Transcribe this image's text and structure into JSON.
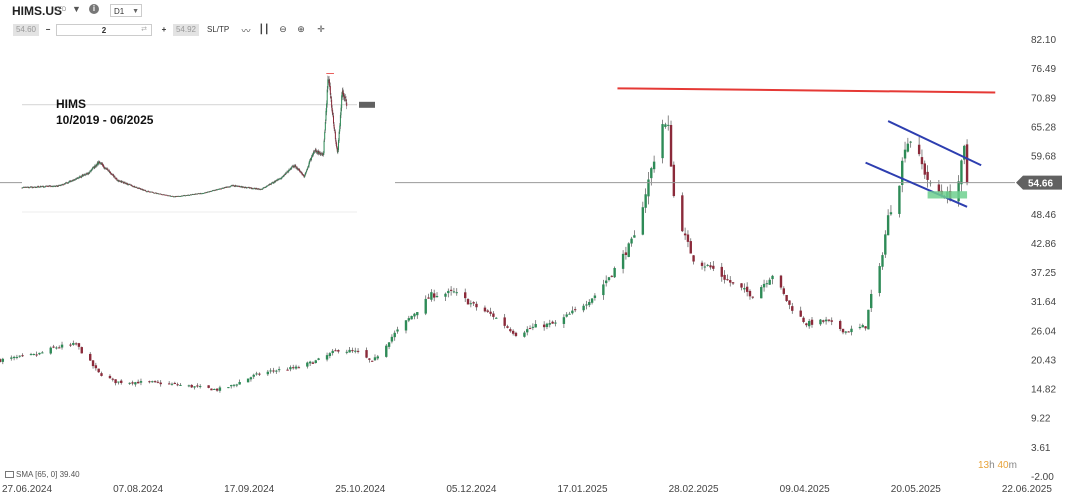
{
  "toolbar": {
    "symbol": "HIMS.US",
    "instrument_type": "CFD",
    "timeframe": "D1",
    "sell_price": "54.60",
    "quantity": "2",
    "buy_price": "54.92",
    "sltp_label": "SL/TP",
    "icons": [
      "line-chart-icon",
      "candles-icon",
      "zoom-out-icon",
      "zoom-in-icon",
      "crosshair-icon"
    ]
  },
  "indicator": {
    "label": "SMA [65, 0] 39.40"
  },
  "countdown": {
    "hours": "13",
    "h": "h",
    "minutes": "40",
    "m": "m"
  },
  "inset": {
    "title_line1": "HIMS",
    "title_line2": "10/2019 - 06/2025"
  },
  "colors": {
    "bull": "#2e8b57",
    "bear": "#8b2a3a",
    "resistance": "#e53935",
    "channel": "#2d3eb0",
    "current_price_line": "#999999",
    "price_label_bg": "#616161",
    "support_box": "#6fd08f",
    "countdown": "#e8a33a"
  },
  "chart_data": {
    "type": "candlestick",
    "current_price": 54.66,
    "current_price_label": "54.66",
    "y_ticks": [
      "82.10",
      "76.49",
      "70.89",
      "65.28",
      "59.68",
      "54.07",
      "48.46",
      "42.86",
      "37.25",
      "31.64",
      "26.04",
      "20.43",
      "14.82",
      "9.22",
      "3.61",
      "-2.00"
    ],
    "ylim": [
      -2.0,
      82.1
    ],
    "x_tick_labels": [
      "27.06.2024",
      "07.08.2024",
      "17.09.2024",
      "25.10.2024",
      "05.12.2024",
      "17.01.2025",
      "28.02.2025",
      "09.04.2025",
      "20.05.2025",
      "22.06.2025"
    ],
    "xlim": [
      "2024-06-27",
      "2025-06-22"
    ],
    "close_path": [
      [
        "2024-06-27",
        20.5
      ],
      [
        "2024-07-10",
        21.5
      ],
      [
        "2024-07-17",
        23.0
      ],
      [
        "2024-07-24",
        23.5
      ],
      [
        "2024-08-01",
        18.0
      ],
      [
        "2024-08-07",
        16.3
      ],
      [
        "2024-08-20",
        16.2
      ],
      [
        "2024-08-28",
        15.8
      ],
      [
        "2024-09-05",
        15.3
      ],
      [
        "2024-09-12",
        14.8
      ],
      [
        "2024-09-17",
        15.5
      ],
      [
        "2024-09-25",
        17.5
      ],
      [
        "2024-10-02",
        18.5
      ],
      [
        "2024-10-10",
        19.0
      ],
      [
        "2024-10-18",
        20.5
      ],
      [
        "2024-10-25",
        22.5
      ],
      [
        "2024-11-01",
        22.0
      ],
      [
        "2024-11-06",
        20.0
      ],
      [
        "2024-11-13",
        25.0
      ],
      [
        "2024-11-20",
        29.0
      ],
      [
        "2024-11-27",
        33.0
      ],
      [
        "2024-12-05",
        33.5
      ],
      [
        "2024-12-12",
        31.0
      ],
      [
        "2024-12-19",
        29.0
      ],
      [
        "2024-12-27",
        25.5
      ],
      [
        "2025-01-03",
        27.0
      ],
      [
        "2025-01-10",
        27.5
      ],
      [
        "2025-01-17",
        30.0
      ],
      [
        "2025-01-24",
        33.0
      ],
      [
        "2025-01-31",
        38.0
      ],
      [
        "2025-02-07",
        44.0
      ],
      [
        "2025-02-12",
        55.0
      ],
      [
        "2025-02-17",
        66.0
      ],
      [
        "2025-02-19",
        65.0
      ],
      [
        "2025-02-21",
        52.0
      ],
      [
        "2025-02-25",
        44.0
      ],
      [
        "2025-02-28",
        40.0
      ],
      [
        "2025-03-07",
        38.0
      ],
      [
        "2025-03-14",
        35.0
      ],
      [
        "2025-03-21",
        33.0
      ],
      [
        "2025-03-28",
        37.0
      ],
      [
        "2025-04-03",
        31.0
      ],
      [
        "2025-04-09",
        27.5
      ],
      [
        "2025-04-16",
        28.0
      ],
      [
        "2025-04-23",
        26.0
      ],
      [
        "2025-04-30",
        27.0
      ],
      [
        "2025-05-02",
        33.0
      ],
      [
        "2025-05-05",
        38.0
      ],
      [
        "2025-05-08",
        48.0
      ],
      [
        "2025-05-12",
        55.0
      ],
      [
        "2025-05-14",
        62.0
      ],
      [
        "2025-05-16",
        63.0
      ],
      [
        "2025-05-20",
        58.0
      ],
      [
        "2025-05-23",
        54.0
      ],
      [
        "2025-05-27",
        52.5
      ],
      [
        "2025-05-30",
        52.0
      ],
      [
        "2025-06-02",
        55.0
      ],
      [
        "2025-06-04",
        61.0
      ],
      [
        "2025-06-05",
        54.66
      ]
    ],
    "annotations": {
      "resistance_line": {
        "from": [
          "2025-02-01",
          72.8
        ],
        "to": [
          "2025-06-15",
          72.0
        ]
      },
      "channel_upper": {
        "from": [
          "2025-05-08",
          66.5
        ],
        "to": [
          "2025-06-10",
          58.0
        ]
      },
      "channel_lower": {
        "from": [
          "2025-04-30",
          58.5
        ],
        "to": [
          "2025-06-05",
          50.0
        ]
      },
      "support_box": {
        "from": [
          "2025-05-22",
          51.6
        ],
        "to": [
          "2025-06-05",
          53.0
        ]
      }
    },
    "inset": {
      "type": "candlestick",
      "period": [
        "2019-10",
        "2025-06"
      ],
      "close_path": [
        [
          "2019-10",
          10.0
        ],
        [
          "2020-06",
          11.0
        ],
        [
          "2020-12",
          18.0
        ],
        [
          "2021-02",
          24.0
        ],
        [
          "2021-06",
          14.0
        ],
        [
          "2021-12",
          8.0
        ],
        [
          "2022-06",
          5.0
        ],
        [
          "2022-12",
          7.0
        ],
        [
          "2023-06",
          11.0
        ],
        [
          "2023-12",
          9.0
        ],
        [
          "2024-04",
          15.0
        ],
        [
          "2024-07",
          22.0
        ],
        [
          "2024-09",
          16.0
        ],
        [
          "2024-11",
          30.0
        ],
        [
          "2025-01",
          28.0
        ],
        [
          "2025-02",
          70.0
        ],
        [
          "2025-04",
          28.0
        ],
        [
          "2025-05",
          62.0
        ],
        [
          "2025-06",
          55.0
        ]
      ],
      "ylim": [
        0,
        75
      ]
    }
  }
}
